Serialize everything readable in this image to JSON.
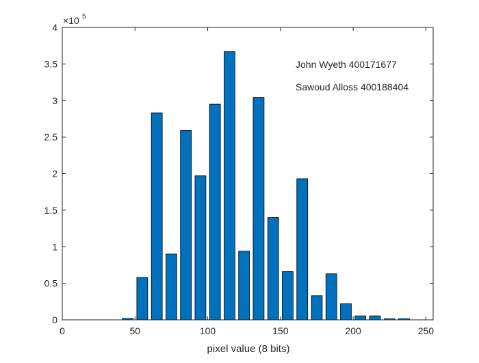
{
  "chart_data": {
    "type": "bar",
    "xlabel": "pixel value (8 bits)",
    "ylabel": "",
    "xlim": [
      0,
      255
    ],
    "ylim": [
      0,
      400000
    ],
    "x_ticks": [
      0,
      50,
      100,
      150,
      200,
      250
    ],
    "y_ticks": [
      0,
      50000,
      100000,
      150000,
      200000,
      250000,
      300000,
      350000,
      400000
    ],
    "y_tick_labels": [
      "0",
      "0.5",
      "1",
      "1.5",
      "2",
      "2.5",
      "3",
      "3.5",
      "4"
    ],
    "y_exponent": {
      "base": "×10",
      "power": "5"
    },
    "annotations": [
      "John Wyeth 400171677",
      "Sawoud Alloss 400188404"
    ],
    "bar_color": "#0072BD",
    "bar_edge_color": "#000000",
    "bar_width": 7.5,
    "x": [
      5,
      15,
      25,
      35,
      45,
      55,
      65,
      75,
      85,
      95,
      105,
      115,
      125,
      135,
      145,
      155,
      165,
      175,
      185,
      195,
      205,
      215,
      225,
      235,
      245
    ],
    "values": [
      0,
      0,
      0,
      0,
      2000,
      58000,
      283000,
      90000,
      259000,
      197000,
      295000,
      367000,
      94000,
      304000,
      140000,
      66000,
      193000,
      33000,
      63000,
      22000,
      5500,
      5500,
      1500,
      1500,
      0
    ]
  }
}
